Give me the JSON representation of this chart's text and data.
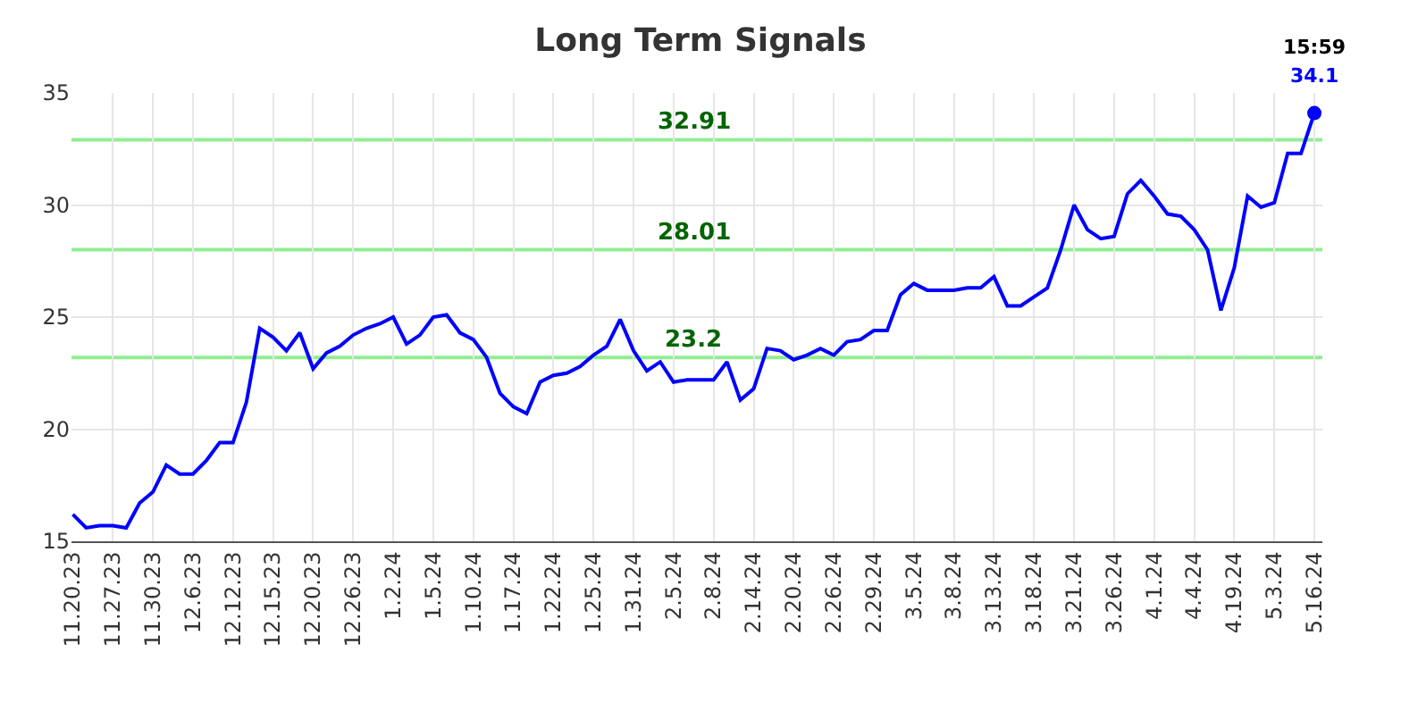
{
  "chart_data": {
    "type": "line",
    "title": "Long Term Signals",
    "categories": [
      "11.20.23",
      null,
      null,
      "11.27.23",
      null,
      null,
      "11.30.23",
      null,
      null,
      "12.6.23",
      null,
      null,
      "12.12.23",
      null,
      null,
      "12.15.23",
      null,
      null,
      "12.20.23",
      null,
      null,
      "12.26.23",
      null,
      null,
      "1.2.24",
      null,
      null,
      "1.5.24",
      null,
      null,
      "1.10.24",
      null,
      null,
      "1.17.24",
      null,
      null,
      "1.22.24",
      null,
      null,
      "1.25.24",
      null,
      null,
      "1.31.24",
      null,
      null,
      "2.5.24",
      null,
      null,
      "2.8.24",
      null,
      null,
      "2.14.24",
      null,
      null,
      "2.20.24",
      null,
      null,
      "2.26.24",
      null,
      null,
      "2.29.24",
      null,
      null,
      "3.5.24",
      null,
      null,
      "3.8.24",
      null,
      null,
      "3.13.24",
      null,
      null,
      "3.18.24",
      null,
      null,
      "3.21.24",
      null,
      null,
      "3.26.24",
      null,
      null,
      "4.1.24",
      null,
      null,
      "4.4.24",
      null,
      null,
      "4.19.24",
      null,
      null,
      "5.3.24",
      null,
      null,
      "5.16.24"
    ],
    "series": [
      {
        "color": "#0000ff",
        "values": [
          16.2,
          15.6,
          15.7,
          15.7,
          15.6,
          16.7,
          17.2,
          18.4,
          18.0,
          18.0,
          18.6,
          19.4,
          19.4,
          21.2,
          24.5,
          24.1,
          23.5,
          24.3,
          22.7,
          23.4,
          23.7,
          24.2,
          24.5,
          24.7,
          25.0,
          23.8,
          24.2,
          25.0,
          25.1,
          24.3,
          24.0,
          23.2,
          21.6,
          21.0,
          20.7,
          22.1,
          22.4,
          22.5,
          22.8,
          23.3,
          23.7,
          24.9,
          23.5,
          22.6,
          23.0,
          22.1,
          22.2,
          22.2,
          22.2,
          23.0,
          21.3,
          21.8,
          23.6,
          23.5,
          23.1,
          23.3,
          23.6,
          23.3,
          23.9,
          24.0,
          24.4,
          24.4,
          26.0,
          26.5,
          26.2,
          26.2,
          26.2,
          26.3,
          26.3,
          26.8,
          25.5,
          25.5,
          25.9,
          26.3,
          28.0,
          30.0,
          28.9,
          28.5,
          28.6,
          30.5,
          31.1,
          30.4,
          29.6,
          29.5,
          28.9,
          28.0,
          25.3,
          27.2,
          30.4,
          29.9,
          30.1,
          32.3,
          32.3,
          34.1
        ]
      }
    ],
    "ylim": [
      15,
      35
    ],
    "yticks": [
      15,
      20,
      25,
      30,
      35
    ],
    "grid": true,
    "marker": "none",
    "line_style": "solid",
    "ref_lines": [
      {
        "axis": "y",
        "value": 32.91,
        "label": "32.91",
        "color": "#90ee90"
      },
      {
        "axis": "y",
        "value": 28.01,
        "label": "28.01",
        "color": "#90ee90"
      },
      {
        "axis": "y",
        "value": 23.2,
        "label": "23.2",
        "color": "#90ee90"
      }
    ],
    "annotations": [
      {
        "text": "15:59",
        "x": "5.16.24",
        "y": 34.1
      },
      {
        "text": "34.1",
        "x": "5.16.24",
        "y": 34.1
      }
    ]
  }
}
